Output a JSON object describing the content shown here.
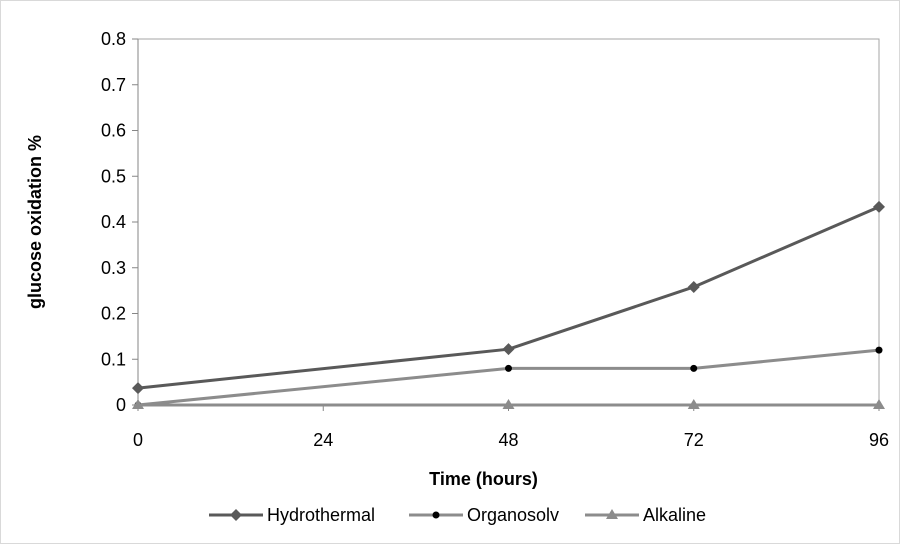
{
  "chart_data": {
    "type": "line",
    "title": "",
    "xlabel": "Time (hours)",
    "ylabel": "glucose oxidation %",
    "x": [
      0,
      48,
      72,
      96
    ],
    "xticks": [
      0,
      24,
      48,
      72,
      96
    ],
    "xlim": [
      0,
      96
    ],
    "ylim": [
      0,
      0.8
    ],
    "yticks": [
      0,
      0.1,
      0.2,
      0.3,
      0.4,
      0.5,
      0.6,
      0.7,
      0.8
    ],
    "grid": false,
    "legend_position": "bottom",
    "series": [
      {
        "name": "Hydrothermal",
        "values": [
          0.037,
          0.122,
          0.258,
          0.433
        ],
        "color": "#595959",
        "marker": "diamond"
      },
      {
        "name": "Organosolv",
        "values": [
          0.0,
          0.08,
          0.08,
          0.12
        ],
        "color": "#8c8c8c",
        "marker": "circle",
        "marker_color": "#000000"
      },
      {
        "name": "Alkaline",
        "values": [
          0.0,
          0.0,
          0.0,
          0.0
        ],
        "color": "#8c8c8c",
        "marker": "triangle"
      }
    ]
  }
}
